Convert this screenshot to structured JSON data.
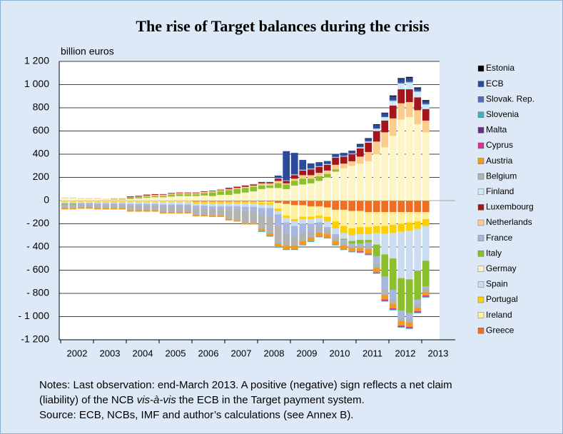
{
  "chart_data": {
    "type": "stacked-bar",
    "title": "The rise of Target balances during the crisis",
    "y_label": "billion euros",
    "categories": [
      "2002",
      null,
      null,
      null,
      "2003",
      null,
      null,
      null,
      "2004",
      null,
      null,
      null,
      "2005",
      null,
      null,
      null,
      "2006",
      null,
      null,
      null,
      "2007",
      null,
      null,
      null,
      "2008",
      null,
      null,
      null,
      "2009",
      null,
      null,
      null,
      "2010",
      null,
      null,
      null,
      "2011",
      null,
      null,
      null,
      "2012",
      null,
      null,
      null,
      "2013"
    ],
    "ylim": [
      -1200,
      1200
    ],
    "yticks": [
      {
        "value": -1200,
        "label": "-1 200"
      },
      {
        "value": -1000,
        "label": "- 1 000"
      },
      {
        "value": -800,
        "label": "- 800"
      },
      {
        "value": -600,
        "label": "- 600"
      },
      {
        "value": -400,
        "label": "- 400"
      },
      {
        "value": -200,
        "label": "- 200"
      },
      0,
      200,
      400,
      600,
      800,
      {
        "value": 1000,
        "label": "1 000"
      },
      {
        "value": 1200,
        "label": "1 200"
      }
    ],
    "grid": true,
    "legend": "right",
    "series": [
      {
        "name": "Estonia",
        "color": "#000000",
        "values": [
          0,
          0,
          0,
          0,
          0,
          0,
          0,
          0,
          0,
          0,
          0,
          0,
          0,
          0,
          0,
          0,
          0,
          0,
          0,
          0,
          0,
          0,
          0,
          0,
          0,
          0,
          0,
          0,
          0,
          0,
          0,
          0,
          0,
          0,
          0,
          0,
          2,
          2,
          2,
          2,
          5,
          5,
          5,
          5,
          5
        ]
      },
      {
        "name": "ECB",
        "color": "#2c4a9c",
        "values": [
          0,
          0,
          0,
          0,
          0,
          0,
          0,
          0,
          0,
          0,
          0,
          0,
          0,
          0,
          0,
          0,
          0,
          0,
          0,
          0,
          0,
          0,
          0,
          0,
          0,
          0,
          20,
          250,
          180,
          80,
          40,
          30,
          20,
          20,
          20,
          20,
          20,
          20,
          30,
          30,
          30,
          30,
          30,
          20,
          20
        ]
      },
      {
        "name": "Slovak. Rep.",
        "color": "#5a6ab2",
        "values": [
          0,
          0,
          0,
          0,
          0,
          0,
          0,
          0,
          0,
          0,
          0,
          0,
          0,
          0,
          0,
          0,
          0,
          0,
          0,
          0,
          0,
          0,
          0,
          0,
          0,
          0,
          0,
          0,
          5,
          5,
          5,
          5,
          5,
          5,
          5,
          5,
          5,
          5,
          5,
          5,
          10,
          10,
          10,
          10,
          10
        ]
      },
      {
        "name": "Slovenia",
        "color": "#3fb0c6",
        "values": [
          0,
          0,
          0,
          0,
          0,
          0,
          0,
          0,
          0,
          0,
          0,
          0,
          0,
          0,
          0,
          0,
          0,
          0,
          0,
          0,
          0,
          0,
          0,
          0,
          -5,
          -5,
          -5,
          -5,
          -5,
          -5,
          -5,
          -5,
          -5,
          -5,
          -5,
          -5,
          -5,
          -5,
          -5,
          -5,
          -5,
          -5,
          -5,
          -5,
          -5
        ]
      },
      {
        "name": "Malta",
        "color": "#6a2c8e",
        "values": [
          0,
          0,
          0,
          0,
          0,
          0,
          0,
          0,
          0,
          0,
          0,
          0,
          0,
          0,
          0,
          0,
          0,
          0,
          0,
          0,
          0,
          0,
          0,
          0,
          0,
          0,
          0,
          0,
          0,
          0,
          0,
          0,
          0,
          0,
          0,
          0,
          0,
          0,
          0,
          0,
          0,
          0,
          0,
          0,
          0
        ]
      },
      {
        "name": "Cyprus",
        "color": "#d8318a",
        "values": [
          0,
          0,
          0,
          0,
          0,
          0,
          0,
          0,
          0,
          0,
          0,
          0,
          0,
          0,
          0,
          0,
          0,
          0,
          0,
          0,
          0,
          0,
          0,
          0,
          0,
          0,
          0,
          0,
          0,
          0,
          0,
          0,
          0,
          0,
          0,
          0,
          -5,
          -5,
          -5,
          -10,
          -10,
          -10,
          -10,
          -10,
          -10
        ]
      },
      {
        "name": "Austria",
        "color": "#f29a1f",
        "values": [
          -10,
          -10,
          -10,
          -10,
          -10,
          -10,
          -10,
          -10,
          -10,
          -10,
          -10,
          -10,
          -10,
          -10,
          -10,
          -10,
          -10,
          -10,
          -10,
          -10,
          -10,
          -10,
          -10,
          -10,
          -20,
          -20,
          -30,
          -30,
          -30,
          -30,
          -30,
          -30,
          -30,
          -30,
          -30,
          -30,
          -30,
          -40,
          -40,
          -40,
          -40,
          -40,
          -40,
          -30,
          -30
        ]
      },
      {
        "name": "Belgium",
        "color": "#b3b3b3",
        "values": [
          -20,
          -20,
          -20,
          -20,
          -30,
          -30,
          -30,
          -30,
          -40,
          -40,
          -40,
          -40,
          -50,
          -50,
          -50,
          -50,
          -60,
          -60,
          -60,
          -60,
          -80,
          -90,
          -100,
          -100,
          -120,
          -140,
          -150,
          -100,
          -80,
          -70,
          -60,
          -50,
          -40,
          -40,
          -30,
          -20,
          -20,
          -30,
          -40,
          -50,
          -40,
          -30,
          -30,
          -30,
          -30
        ]
      },
      {
        "name": "Finland",
        "color": "#cdeaf8",
        "values": [
          0,
          0,
          0,
          0,
          0,
          0,
          0,
          0,
          0,
          0,
          0,
          0,
          5,
          5,
          5,
          5,
          5,
          5,
          5,
          5,
          5,
          5,
          5,
          5,
          5,
          5,
          5,
          5,
          5,
          5,
          5,
          5,
          5,
          5,
          5,
          5,
          10,
          10,
          20,
          30,
          40,
          50,
          60,
          50,
          40
        ]
      },
      {
        "name": "Luxembourg",
        "color": "#a3161b",
        "values": [
          0,
          0,
          0,
          0,
          0,
          0,
          0,
          0,
          5,
          5,
          5,
          5,
          5,
          5,
          5,
          5,
          5,
          5,
          5,
          5,
          10,
          10,
          10,
          10,
          10,
          10,
          20,
          20,
          30,
          40,
          50,
          50,
          50,
          60,
          60,
          60,
          70,
          80,
          90,
          100,
          110,
          120,
          110,
          110,
          100
        ]
      },
      {
        "name": "Netherlands",
        "color": "#fbcc8c",
        "values": [
          5,
          5,
          5,
          5,
          5,
          5,
          5,
          5,
          5,
          5,
          10,
          10,
          10,
          10,
          10,
          10,
          10,
          10,
          10,
          10,
          10,
          10,
          10,
          10,
          20,
          20,
          20,
          10,
          20,
          30,
          30,
          30,
          30,
          40,
          40,
          40,
          60,
          80,
          110,
          130,
          150,
          140,
          130,
          120,
          100
        ]
      },
      {
        "name": "France",
        "color": "#a8b7de",
        "values": [
          -10,
          -10,
          -10,
          -10,
          -10,
          -10,
          -10,
          -10,
          -15,
          -15,
          -15,
          -15,
          -15,
          -15,
          -15,
          -15,
          -20,
          -20,
          -20,
          -20,
          -30,
          -30,
          -40,
          -40,
          -60,
          -80,
          -100,
          -100,
          -90,
          -80,
          -60,
          -40,
          -20,
          -20,
          -20,
          -20,
          -20,
          -30,
          -60,
          -110,
          -80,
          -60,
          -50,
          -40,
          -20
        ]
      },
      {
        "name": "Italy",
        "color": "#8cbf2d",
        "values": [
          -10,
          -10,
          -5,
          -5,
          0,
          0,
          5,
          5,
          10,
          10,
          10,
          10,
          10,
          15,
          15,
          15,
          15,
          20,
          30,
          30,
          40,
          40,
          40,
          40,
          30,
          20,
          40,
          40,
          40,
          50,
          40,
          40,
          30,
          20,
          -10,
          -20,
          -30,
          -20,
          -100,
          -190,
          -270,
          -280,
          -290,
          -250,
          -220
        ]
      },
      {
        "name": "Germay",
        "color": "#fdf5c6",
        "values": [
          20,
          20,
          15,
          15,
          15,
          10,
          10,
          10,
          15,
          20,
          25,
          30,
          30,
          35,
          40,
          40,
          40,
          45,
          40,
          50,
          50,
          60,
          70,
          80,
          100,
          110,
          110,
          100,
          130,
          140,
          150,
          170,
          200,
          250,
          280,
          300,
          320,
          340,
          400,
          460,
          560,
          700,
          720,
          660,
          590
        ]
      },
      {
        "name": "Spain",
        "color": "#cbdcf1",
        "values": [
          -10,
          -10,
          -10,
          -10,
          -10,
          -10,
          -10,
          -10,
          -15,
          -15,
          -15,
          -15,
          -20,
          -20,
          -20,
          -20,
          -20,
          -20,
          -25,
          -25,
          -25,
          -25,
          -30,
          -30,
          -30,
          -30,
          -30,
          -40,
          -40,
          -40,
          -40,
          -40,
          -50,
          -50,
          -50,
          -50,
          -50,
          -50,
          -100,
          -180,
          -220,
          -400,
          -420,
          -360,
          -300
        ]
      },
      {
        "name": "Portugal",
        "color": "#ffd000",
        "values": [
          -5,
          -5,
          -5,
          -5,
          -5,
          -5,
          -5,
          -5,
          -5,
          -5,
          -5,
          -5,
          -5,
          -5,
          -5,
          -5,
          -10,
          -10,
          -10,
          -10,
          -10,
          -10,
          -10,
          -10,
          -15,
          -15,
          -20,
          -20,
          -20,
          -20,
          -20,
          -20,
          -40,
          -60,
          -60,
          -60,
          -60,
          -60,
          -60,
          -65,
          -70,
          -70,
          -70,
          -65,
          -60
        ]
      },
      {
        "name": "Ireland",
        "color": "#fff0a0",
        "values": [
          -5,
          -5,
          -5,
          -5,
          -5,
          -5,
          -5,
          -5,
          -5,
          -5,
          -5,
          -5,
          -5,
          -5,
          -5,
          -5,
          -5,
          -5,
          -5,
          -5,
          -5,
          -5,
          -5,
          -5,
          -10,
          -10,
          -50,
          -100,
          -120,
          -100,
          -90,
          -80,
          -80,
          -100,
          -140,
          -150,
          -140,
          -130,
          -120,
          -120,
          -110,
          -100,
          -90,
          -80,
          -60
        ]
      },
      {
        "name": "Greece",
        "color": "#ef6e22",
        "values": [
          -5,
          -5,
          -5,
          -5,
          -5,
          -5,
          -5,
          -5,
          -5,
          -5,
          -5,
          -5,
          -5,
          -5,
          -5,
          -5,
          -10,
          -10,
          -10,
          -10,
          -10,
          -10,
          -10,
          -10,
          -10,
          -10,
          -20,
          -30,
          -40,
          -40,
          -50,
          -50,
          -60,
          -80,
          -80,
          -90,
          -90,
          -100,
          -100,
          -100,
          -100,
          -100,
          -100,
          -100,
          -100
        ]
      }
    ],
    "notes": [
      "Notes: Last observation: end-March 2013. A positive (negative) sign reflects a net claim",
      [
        "(liability) of the NCB ",
        "vis-à-vis",
        " the ECB in the Target payment system."
      ],
      "Source: ECB, NCBs, IMF and author’s calculations (see Annex B)."
    ]
  }
}
